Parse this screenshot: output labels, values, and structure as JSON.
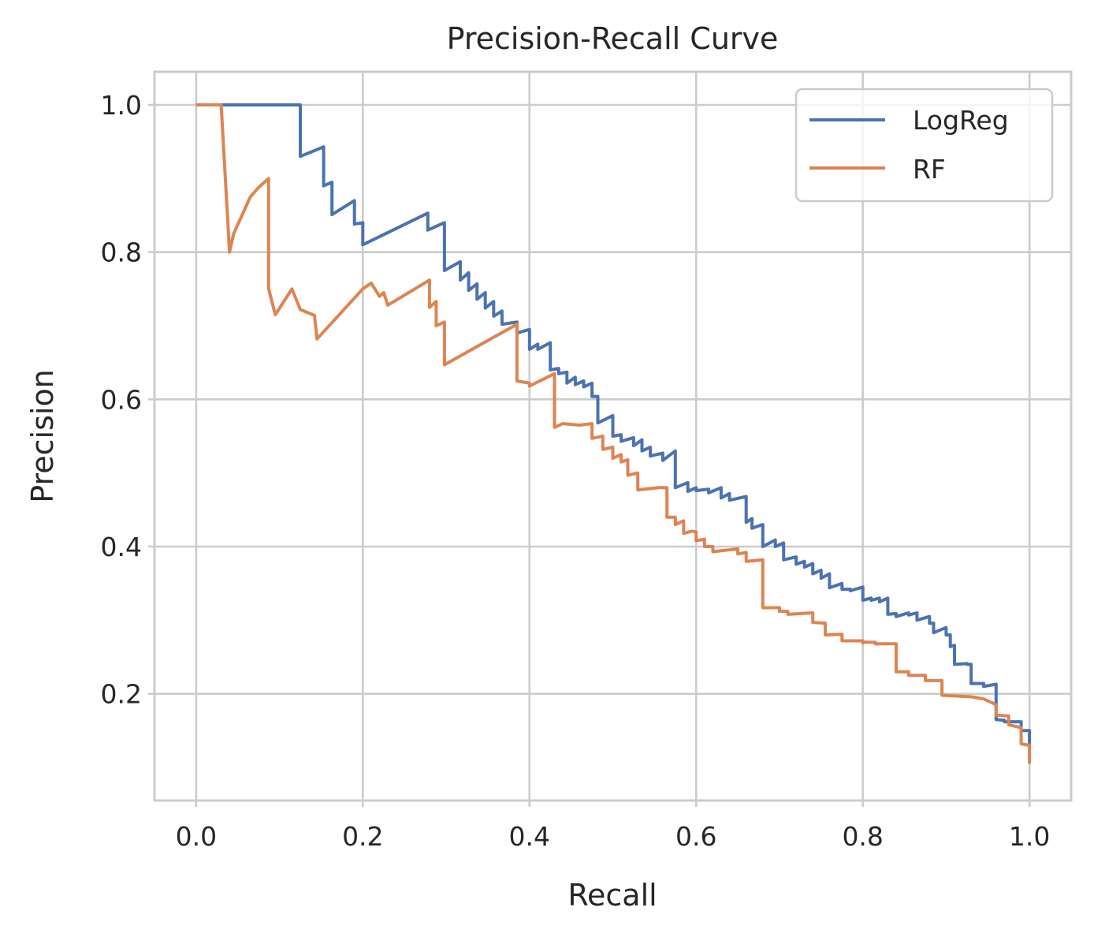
{
  "chart_data": {
    "type": "line",
    "title": "Precision-Recall Curve",
    "xlabel": "Recall",
    "ylabel": "Precision",
    "xlim": [
      -0.05,
      1.05
    ],
    "ylim": [
      0.055,
      1.045
    ],
    "xticks": [
      0.0,
      0.2,
      0.4,
      0.6,
      0.8,
      1.0
    ],
    "xtick_labels": [
      "0.0",
      "0.2",
      "0.4",
      "0.6",
      "0.8",
      "1.0"
    ],
    "yticks": [
      0.2,
      0.4,
      0.6,
      0.8,
      1.0
    ],
    "ytick_labels": [
      "0.2",
      "0.4",
      "0.6",
      "0.8",
      "1.0"
    ],
    "grid": true,
    "legend": {
      "position": "upper right"
    },
    "series": [
      {
        "name": "LogReg",
        "color": "#4c72b0",
        "points": [
          [
            0.0,
            1.0
          ],
          [
            0.125,
            1.0
          ],
          [
            0.125,
            0.93
          ],
          [
            0.153,
            0.943
          ],
          [
            0.153,
            0.89
          ],
          [
            0.163,
            0.895
          ],
          [
            0.163,
            0.851
          ],
          [
            0.19,
            0.87
          ],
          [
            0.19,
            0.838
          ],
          [
            0.2,
            0.84
          ],
          [
            0.2,
            0.81
          ],
          [
            0.278,
            0.853
          ],
          [
            0.278,
            0.83
          ],
          [
            0.298,
            0.84
          ],
          [
            0.298,
            0.775
          ],
          [
            0.317,
            0.787
          ],
          [
            0.317,
            0.762
          ],
          [
            0.327,
            0.772
          ],
          [
            0.327,
            0.748
          ],
          [
            0.337,
            0.757
          ],
          [
            0.337,
            0.736
          ],
          [
            0.347,
            0.745
          ],
          [
            0.347,
            0.724
          ],
          [
            0.357,
            0.733
          ],
          [
            0.357,
            0.713
          ],
          [
            0.367,
            0.72
          ],
          [
            0.367,
            0.702
          ],
          [
            0.385,
            0.705
          ],
          [
            0.385,
            0.69
          ],
          [
            0.4,
            0.695
          ],
          [
            0.4,
            0.668
          ],
          [
            0.41,
            0.675
          ],
          [
            0.41,
            0.668
          ],
          [
            0.425,
            0.677
          ],
          [
            0.425,
            0.64
          ],
          [
            0.435,
            0.642
          ],
          [
            0.435,
            0.635
          ],
          [
            0.445,
            0.637
          ],
          [
            0.445,
            0.622
          ],
          [
            0.455,
            0.63
          ],
          [
            0.455,
            0.62
          ],
          [
            0.465,
            0.625
          ],
          [
            0.465,
            0.617
          ],
          [
            0.475,
            0.622
          ],
          [
            0.475,
            0.604
          ],
          [
            0.482,
            0.604
          ],
          [
            0.482,
            0.568
          ],
          [
            0.5,
            0.578
          ],
          [
            0.5,
            0.55
          ],
          [
            0.51,
            0.552
          ],
          [
            0.51,
            0.543
          ],
          [
            0.525,
            0.548
          ],
          [
            0.525,
            0.537
          ],
          [
            0.535,
            0.545
          ],
          [
            0.535,
            0.53
          ],
          [
            0.545,
            0.535
          ],
          [
            0.545,
            0.523
          ],
          [
            0.56,
            0.527
          ],
          [
            0.56,
            0.517
          ],
          [
            0.575,
            0.53
          ],
          [
            0.575,
            0.48
          ],
          [
            0.59,
            0.487
          ],
          [
            0.59,
            0.475
          ],
          [
            0.6,
            0.48
          ],
          [
            0.6,
            0.476
          ],
          [
            0.615,
            0.478
          ],
          [
            0.615,
            0.473
          ],
          [
            0.63,
            0.48
          ],
          [
            0.63,
            0.466
          ],
          [
            0.64,
            0.472
          ],
          [
            0.64,
            0.463
          ],
          [
            0.66,
            0.468
          ],
          [
            0.66,
            0.433
          ],
          [
            0.667,
            0.438
          ],
          [
            0.667,
            0.425
          ],
          [
            0.68,
            0.43
          ],
          [
            0.68,
            0.4
          ],
          [
            0.695,
            0.409
          ],
          [
            0.695,
            0.4
          ],
          [
            0.705,
            0.405
          ],
          [
            0.705,
            0.382
          ],
          [
            0.72,
            0.386
          ],
          [
            0.72,
            0.376
          ],
          [
            0.73,
            0.38
          ],
          [
            0.73,
            0.372
          ],
          [
            0.74,
            0.377
          ],
          [
            0.74,
            0.363
          ],
          [
            0.75,
            0.368
          ],
          [
            0.75,
            0.357
          ],
          [
            0.76,
            0.363
          ],
          [
            0.76,
            0.344
          ],
          [
            0.775,
            0.35
          ],
          [
            0.775,
            0.342
          ],
          [
            0.785,
            0.342
          ],
          [
            0.785,
            0.34
          ],
          [
            0.8,
            0.345
          ],
          [
            0.8,
            0.327
          ],
          [
            0.81,
            0.33
          ],
          [
            0.81,
            0.327
          ],
          [
            0.82,
            0.33
          ],
          [
            0.82,
            0.325
          ],
          [
            0.83,
            0.33
          ],
          [
            0.83,
            0.308
          ],
          [
            0.84,
            0.309
          ],
          [
            0.84,
            0.305
          ],
          [
            0.855,
            0.31
          ],
          [
            0.855,
            0.307
          ],
          [
            0.865,
            0.31
          ],
          [
            0.865,
            0.3
          ],
          [
            0.88,
            0.305
          ],
          [
            0.88,
            0.296
          ],
          [
            0.885,
            0.296
          ],
          [
            0.885,
            0.283
          ],
          [
            0.9,
            0.29
          ],
          [
            0.9,
            0.28
          ],
          [
            0.905,
            0.28
          ],
          [
            0.905,
            0.264
          ],
          [
            0.91,
            0.266
          ],
          [
            0.91,
            0.24
          ],
          [
            0.925,
            0.241
          ],
          [
            0.925,
            0.24
          ],
          [
            0.93,
            0.24
          ],
          [
            0.93,
            0.214
          ],
          [
            0.945,
            0.214
          ],
          [
            0.945,
            0.21
          ],
          [
            0.96,
            0.213
          ],
          [
            0.96,
            0.165
          ],
          [
            0.97,
            0.164
          ],
          [
            0.97,
            0.162
          ],
          [
            0.99,
            0.162
          ],
          [
            0.99,
            0.15
          ],
          [
            1.0,
            0.15
          ],
          [
            1.0,
            0.128
          ]
        ]
      },
      {
        "name": "RF",
        "color": "#dd8452",
        "points": [
          [
            0.0,
            1.0
          ],
          [
            0.03,
            1.0
          ],
          [
            0.04,
            0.8
          ],
          [
            0.045,
            0.825
          ],
          [
            0.055,
            0.85
          ],
          [
            0.065,
            0.875
          ],
          [
            0.075,
            0.888
          ],
          [
            0.087,
            0.9
          ],
          [
            0.087,
            0.75
          ],
          [
            0.095,
            0.715
          ],
          [
            0.115,
            0.75
          ],
          [
            0.125,
            0.722
          ],
          [
            0.142,
            0.714
          ],
          [
            0.145,
            0.682
          ],
          [
            0.2,
            0.75
          ],
          [
            0.21,
            0.758
          ],
          [
            0.22,
            0.74
          ],
          [
            0.225,
            0.745
          ],
          [
            0.23,
            0.728
          ],
          [
            0.28,
            0.762
          ],
          [
            0.28,
            0.725
          ],
          [
            0.288,
            0.733
          ],
          [
            0.288,
            0.7
          ],
          [
            0.298,
            0.705
          ],
          [
            0.298,
            0.647
          ],
          [
            0.385,
            0.702
          ],
          [
            0.385,
            0.625
          ],
          [
            0.4,
            0.622
          ],
          [
            0.4,
            0.618
          ],
          [
            0.43,
            0.635
          ],
          [
            0.43,
            0.562
          ],
          [
            0.44,
            0.567
          ],
          [
            0.46,
            0.565
          ],
          [
            0.475,
            0.567
          ],
          [
            0.475,
            0.547
          ],
          [
            0.488,
            0.55
          ],
          [
            0.488,
            0.532
          ],
          [
            0.5,
            0.535
          ],
          [
            0.5,
            0.52
          ],
          [
            0.51,
            0.525
          ],
          [
            0.51,
            0.515
          ],
          [
            0.518,
            0.518
          ],
          [
            0.518,
            0.497
          ],
          [
            0.53,
            0.5
          ],
          [
            0.53,
            0.477
          ],
          [
            0.555,
            0.48
          ],
          [
            0.565,
            0.48
          ],
          [
            0.565,
            0.44
          ],
          [
            0.575,
            0.44
          ],
          [
            0.575,
            0.43
          ],
          [
            0.585,
            0.435
          ],
          [
            0.585,
            0.418
          ],
          [
            0.595,
            0.421
          ],
          [
            0.6,
            0.42
          ],
          [
            0.6,
            0.408
          ],
          [
            0.61,
            0.41
          ],
          [
            0.61,
            0.4
          ],
          [
            0.62,
            0.4
          ],
          [
            0.62,
            0.393
          ],
          [
            0.65,
            0.397
          ],
          [
            0.65,
            0.39
          ],
          [
            0.66,
            0.392
          ],
          [
            0.66,
            0.38
          ],
          [
            0.68,
            0.382
          ],
          [
            0.68,
            0.317
          ],
          [
            0.7,
            0.317
          ],
          [
            0.7,
            0.312
          ],
          [
            0.71,
            0.312
          ],
          [
            0.71,
            0.308
          ],
          [
            0.74,
            0.31
          ],
          [
            0.74,
            0.297
          ],
          [
            0.755,
            0.296
          ],
          [
            0.755,
            0.28
          ],
          [
            0.775,
            0.281
          ],
          [
            0.775,
            0.272
          ],
          [
            0.8,
            0.272
          ],
          [
            0.8,
            0.269
          ],
          [
            0.8,
            0.27
          ],
          [
            0.815,
            0.27
          ],
          [
            0.815,
            0.268
          ],
          [
            0.84,
            0.268
          ],
          [
            0.84,
            0.23
          ],
          [
            0.855,
            0.23
          ],
          [
            0.855,
            0.225
          ],
          [
            0.875,
            0.225
          ],
          [
            0.875,
            0.218
          ],
          [
            0.895,
            0.218
          ],
          [
            0.895,
            0.198
          ],
          [
            0.93,
            0.196
          ],
          [
            0.945,
            0.193
          ],
          [
            0.955,
            0.188
          ],
          [
            0.96,
            0.185
          ],
          [
            0.96,
            0.171
          ],
          [
            0.975,
            0.17
          ],
          [
            0.975,
            0.158
          ],
          [
            0.99,
            0.154
          ],
          [
            0.99,
            0.132
          ],
          [
            1.0,
            0.13
          ],
          [
            1.0,
            0.105
          ]
        ]
      }
    ]
  }
}
